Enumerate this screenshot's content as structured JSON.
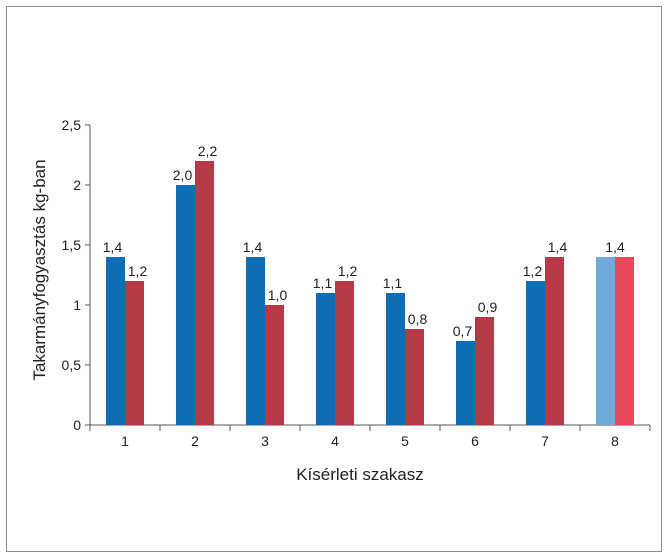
{
  "chart_data": {
    "type": "bar",
    "title": "",
    "xlabel": "Kísérleti szakasz",
    "ylabel": "Takarmányfogyasztás kg-ban",
    "ylim": [
      0,
      2.5
    ],
    "yticks": [
      0,
      0.5,
      1,
      1.5,
      2,
      2.5
    ],
    "ytick_labels": [
      "0",
      "0,5",
      "1",
      "1,5",
      "2",
      "2,5"
    ],
    "categories": [
      "1",
      "2",
      "3",
      "4",
      "5",
      "6",
      "7",
      "8"
    ],
    "series": [
      {
        "values": [
          1.4,
          2.0,
          1.4,
          1.1,
          1.1,
          0.7,
          1.2,
          1.4
        ],
        "labels": [
          "1,4",
          "2,0",
          "1,4",
          "1,1",
          "1,1",
          "0,7",
          "1,2",
          ""
        ],
        "color": "#0f6db5",
        "highlight_color": "#6fa9dc"
      },
      {
        "values": [
          1.2,
          2.2,
          1.0,
          1.2,
          0.8,
          0.9,
          1.4,
          1.4
        ],
        "labels": [
          "1,2",
          "2,2",
          "1,0",
          "1,2",
          "0,8",
          "0,9",
          "1,4",
          ""
        ],
        "color": "#b43a48",
        "highlight_color": "#e8485a"
      }
    ],
    "highlight_category_index": 7,
    "highlight_label": "1,4",
    "grid": false,
    "legend": "none"
  }
}
